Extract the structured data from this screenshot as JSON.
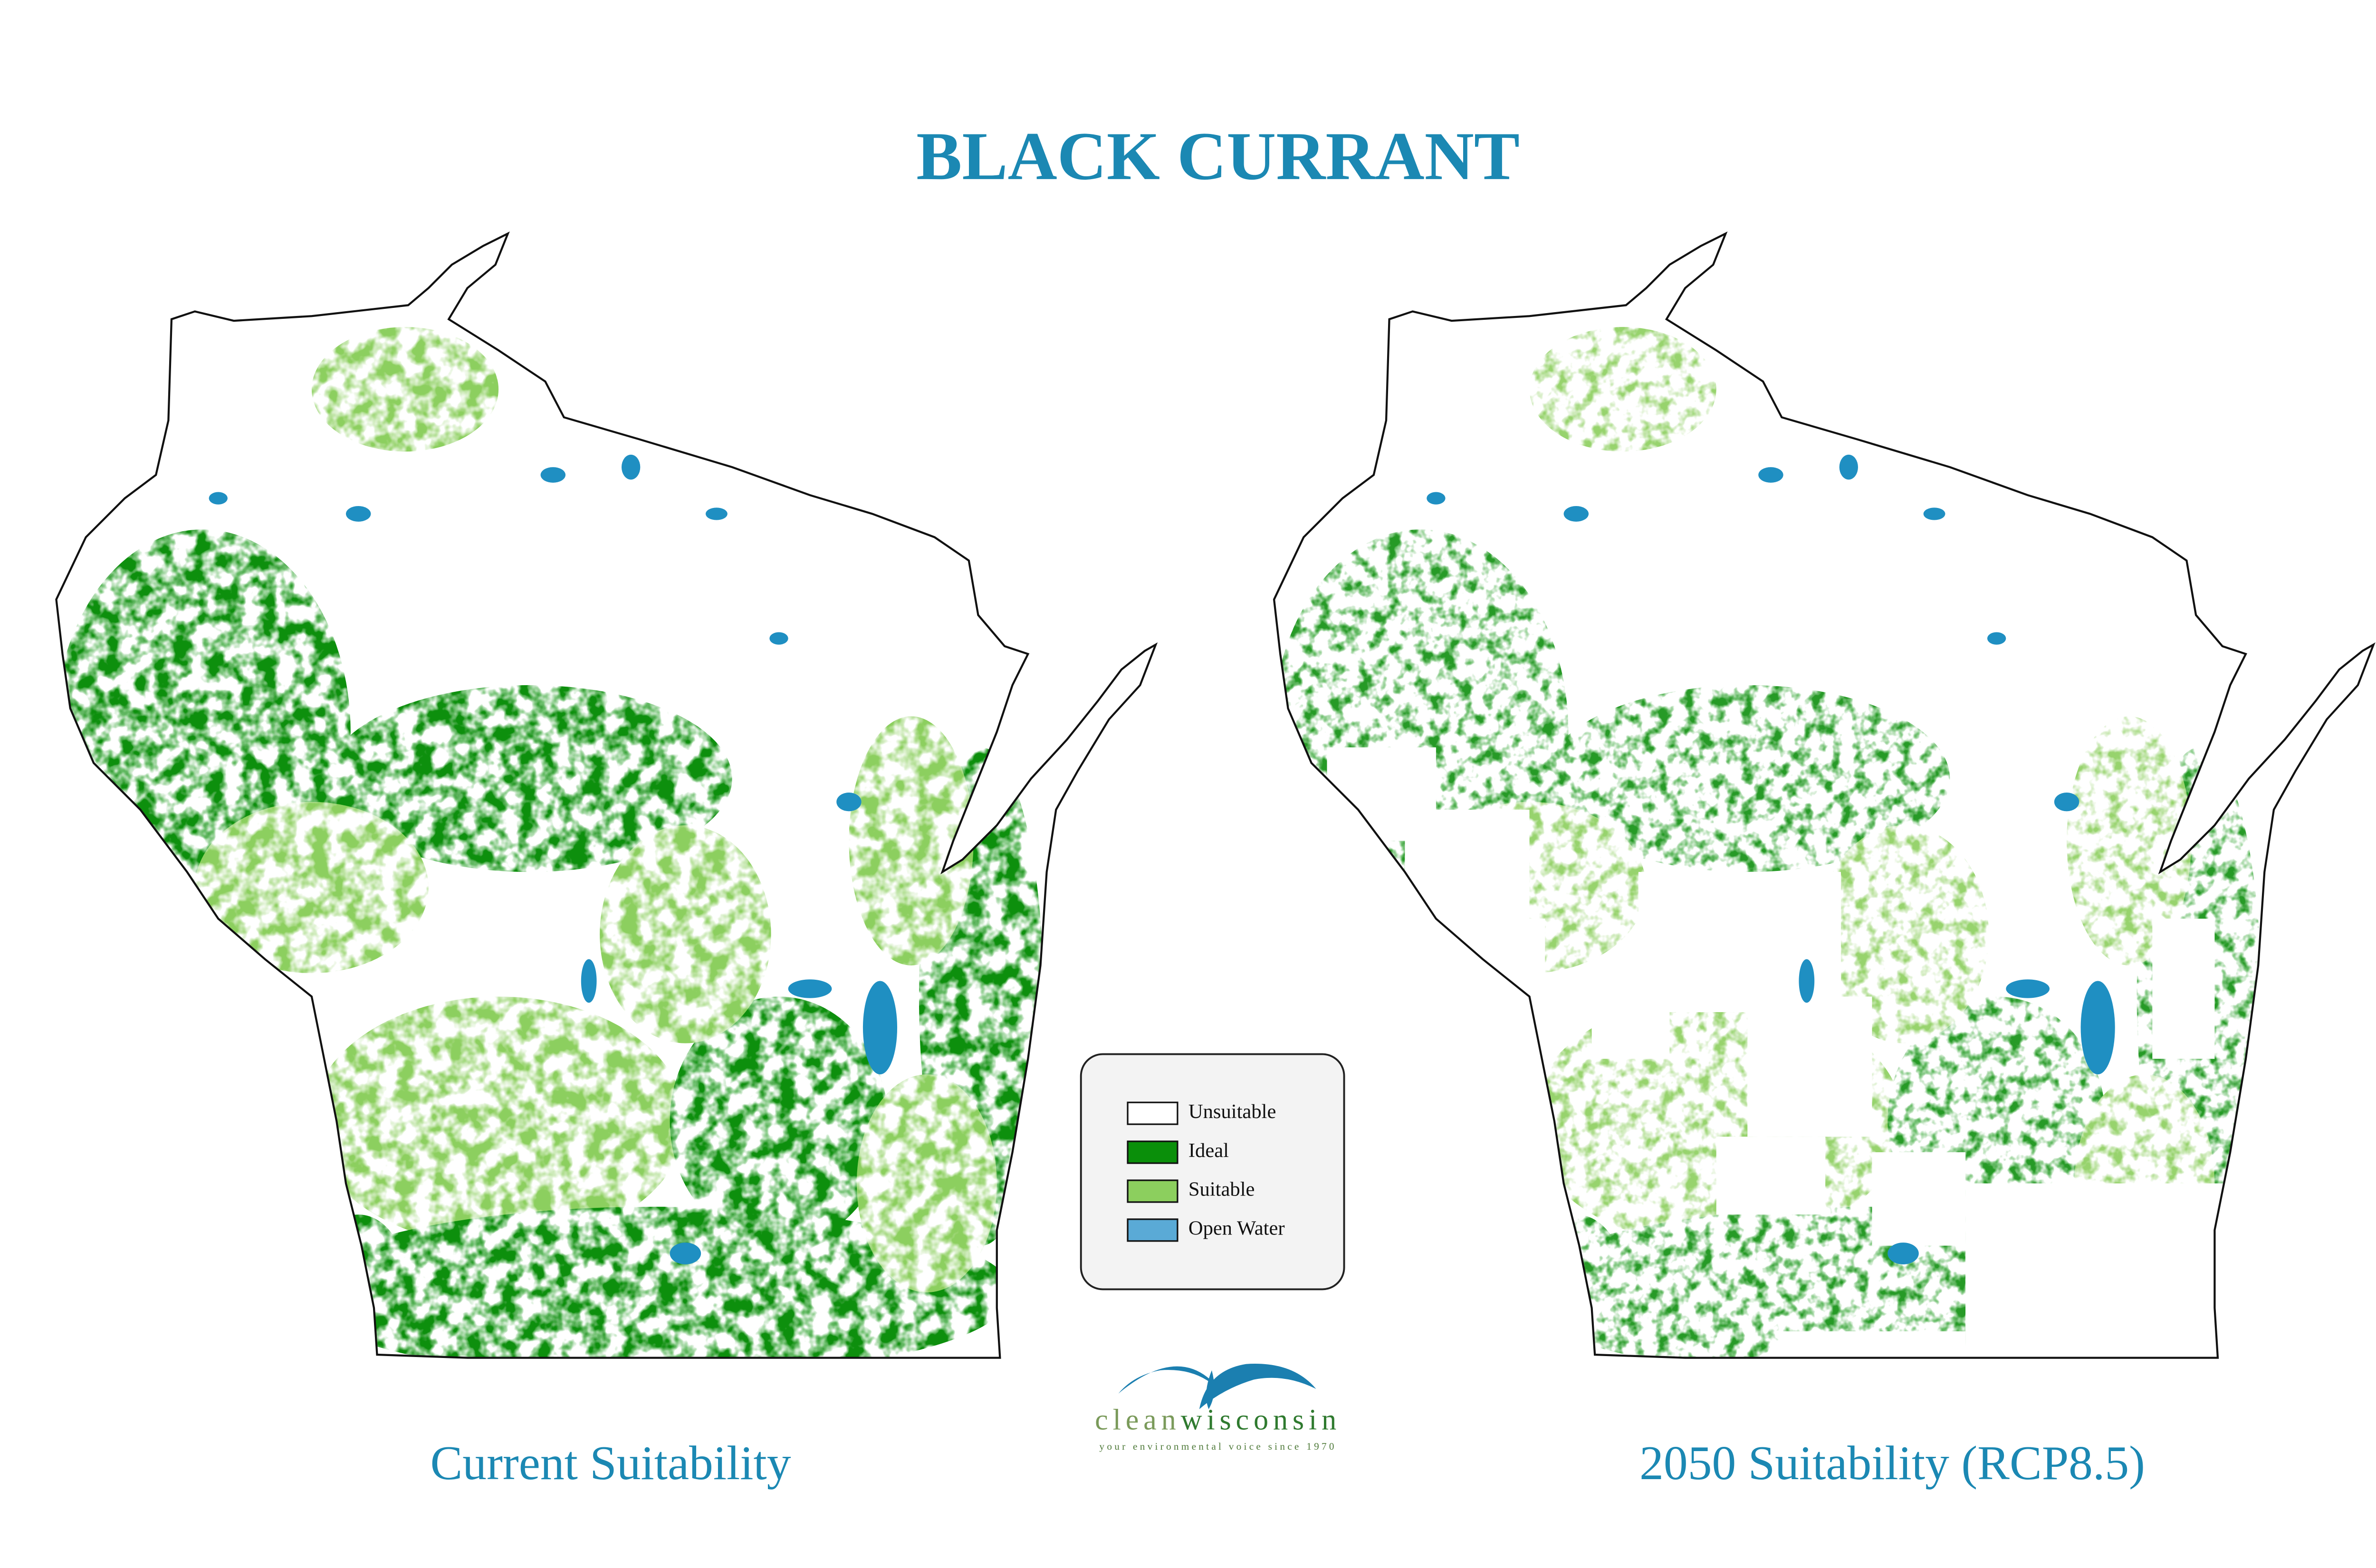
{
  "title": "BLACK CURRANT",
  "maps": [
    {
      "label": "Current Suitability"
    },
    {
      "label": "2050 Suitability (RCP8.5)"
    }
  ],
  "legend": {
    "items": [
      {
        "label": "Unsuitable",
        "color": "#ffffff"
      },
      {
        "label": "Ideal",
        "color": "#0a8f0a"
      },
      {
        "label": "Suitable",
        "color": "#8ccf5e"
      },
      {
        "label": "Open Water",
        "color": "#5aaad6"
      }
    ]
  },
  "logo": {
    "name_first": "clean",
    "name_second": "wisconsin",
    "tagline": "your environmental voice since 1970"
  }
}
